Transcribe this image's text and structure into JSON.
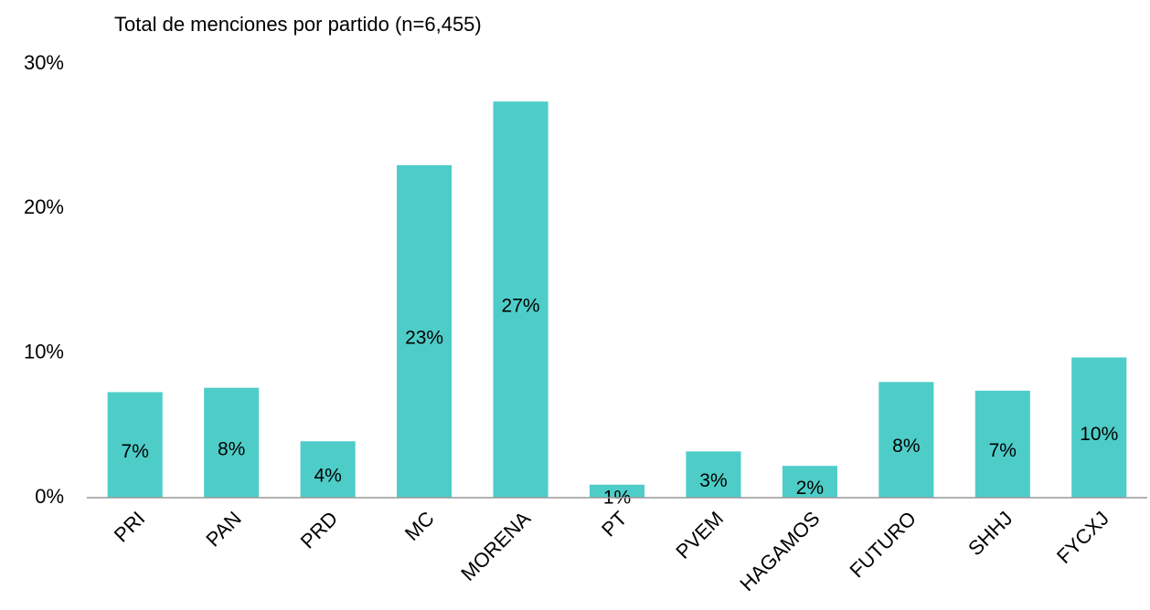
{
  "chart_data": {
    "type": "bar",
    "title": "Total de menciones por partido (n=6,455)",
    "categories": [
      "PRI",
      "PAN",
      "PRD",
      "MC",
      "MORENA",
      "PT",
      "PVEM",
      "HAGAMOS",
      "FUTURO",
      "SHHJ",
      "FYCXJ"
    ],
    "values": [
      7.3,
      7.6,
      3.9,
      23.0,
      27.4,
      0.9,
      3.2,
      2.2,
      8.0,
      7.4,
      9.7
    ],
    "value_labels": [
      "7%",
      "8%",
      "4%",
      "23%",
      "27%",
      "1%",
      "3%",
      "2%",
      "8%",
      "7%",
      "10%"
    ],
    "color": "#4ecdc8",
    "ylim": [
      0,
      30
    ],
    "yticks": [
      {
        "value": 0,
        "label": "0%"
      },
      {
        "value": 10,
        "label": "10%"
      },
      {
        "value": 20,
        "label": "20%"
      },
      {
        "value": 30,
        "label": "30%"
      }
    ],
    "grid": false
  }
}
